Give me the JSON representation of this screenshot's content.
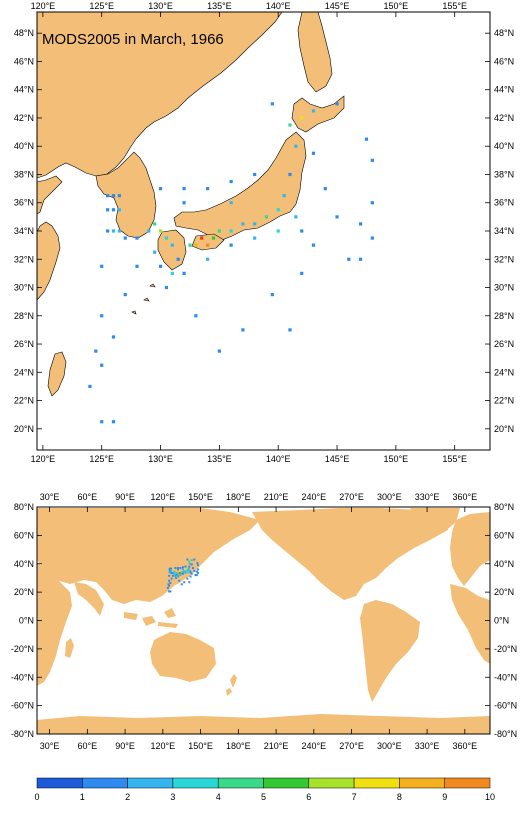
{
  "top_map": {
    "title": "MODS2005 in March, 1966",
    "lon_ticks": [
      "120°E",
      "125°E",
      "130°E",
      "135°E",
      "140°E",
      "145°E",
      "150°E",
      "155°E"
    ],
    "lat_ticks": [
      "20°N",
      "22°N",
      "24°N",
      "26°N",
      "28°N",
      "30°N",
      "32°N",
      "34°N",
      "36°N",
      "38°N",
      "40°N",
      "42°N",
      "44°N",
      "46°N",
      "48°N"
    ],
    "extent": {
      "lon": [
        119.5,
        158
      ],
      "lat": [
        18.5,
        49.5
      ]
    }
  },
  "bottom_map": {
    "lon_ticks": [
      "30°E",
      "60°E",
      "90°E",
      "120°E",
      "150°E",
      "180°E",
      "210°E",
      "240°E",
      "270°E",
      "300°E",
      "330°E",
      "360°E"
    ],
    "lat_ticks": [
      "80°N",
      "60°N",
      "40°N",
      "20°N",
      "0°N",
      "-20°N",
      "-40°N",
      "-60°N",
      "-80°N"
    ],
    "extent": {
      "lon": [
        20,
        380
      ],
      "lat": [
        -80,
        80
      ]
    }
  },
  "colorbar": {
    "labels": [
      "0",
      "1",
      "2",
      "3",
      "4",
      "5",
      "6",
      "7",
      "8",
      "9",
      "10"
    ],
    "colors": [
      "#1e5bd9",
      "#2f8af0",
      "#35b5f0",
      "#2ad7d7",
      "#39d98a",
      "#34c934",
      "#a6e22a",
      "#f0e010",
      "#f5b020",
      "#f08a20",
      "#e04010"
    ]
  },
  "colors": {
    "land": "#f3bf78",
    "ocean": "#ffffff",
    "coast": "#000000"
  },
  "chart_data": {
    "type": "heatmap",
    "title": "MODS2005 in March, 1966",
    "xlabel": "",
    "ylabel": "",
    "value_range": [
      0,
      10
    ],
    "observations": [
      {
        "lon": 125.5,
        "lat": 36.5,
        "v": 1
      },
      {
        "lon": 126.0,
        "lat": 36.5,
        "v": 1
      },
      {
        "lon": 126.5,
        "lat": 36.5,
        "v": 1
      },
      {
        "lon": 125.5,
        "lat": 35.5,
        "v": 1
      },
      {
        "lon": 126.0,
        "lat": 35.5,
        "v": 1
      },
      {
        "lon": 126.5,
        "lat": 35.5,
        "v": 2
      },
      {
        "lon": 125.5,
        "lat": 34.0,
        "v": 1
      },
      {
        "lon": 126.0,
        "lat": 34.0,
        "v": 2
      },
      {
        "lon": 126.5,
        "lat": 34.0,
        "v": 2
      },
      {
        "lon": 127.0,
        "lat": 33.5,
        "v": 1
      },
      {
        "lon": 128.0,
        "lat": 33.5,
        "v": 1
      },
      {
        "lon": 129.0,
        "lat": 34.0,
        "v": 2
      },
      {
        "lon": 129.5,
        "lat": 34.5,
        "v": 4
      },
      {
        "lon": 130.0,
        "lat": 34.0,
        "v": 6
      },
      {
        "lon": 130.5,
        "lat": 33.5,
        "v": 3
      },
      {
        "lon": 131.0,
        "lat": 33.0,
        "v": 2
      },
      {
        "lon": 131.5,
        "lat": 32.0,
        "v": 1
      },
      {
        "lon": 132.5,
        "lat": 33.0,
        "v": 4
      },
      {
        "lon": 133.0,
        "lat": 33.0,
        "v": 8
      },
      {
        "lon": 133.5,
        "lat": 33.5,
        "v": 10
      },
      {
        "lon": 134.0,
        "lat": 33.0,
        "v": 9
      },
      {
        "lon": 134.5,
        "lat": 33.5,
        "v": 5
      },
      {
        "lon": 135.0,
        "lat": 34.0,
        "v": 4
      },
      {
        "lon": 136.0,
        "lat": 34.0,
        "v": 3
      },
      {
        "lon": 137.0,
        "lat": 34.5,
        "v": 2
      },
      {
        "lon": 138.0,
        "lat": 34.5,
        "v": 2
      },
      {
        "lon": 139.0,
        "lat": 35.0,
        "v": 4
      },
      {
        "lon": 140.0,
        "lat": 35.5,
        "v": 3
      },
      {
        "lon": 140.5,
        "lat": 36.5,
        "v": 2
      },
      {
        "lon": 141.0,
        "lat": 38.0,
        "v": 1
      },
      {
        "lon": 141.5,
        "lat": 40.0,
        "v": 2
      },
      {
        "lon": 142.0,
        "lat": 42.0,
        "v": 7
      },
      {
        "lon": 141.0,
        "lat": 41.5,
        "v": 4
      },
      {
        "lon": 139.5,
        "lat": 43.0,
        "v": 1
      },
      {
        "lon": 143.0,
        "lat": 42.5,
        "v": 2
      },
      {
        "lon": 145.0,
        "lat": 43.0,
        "v": 1
      },
      {
        "lon": 130.0,
        "lat": 37.0,
        "v": 1
      },
      {
        "lon": 132.0,
        "lat": 37.0,
        "v": 1
      },
      {
        "lon": 134.0,
        "lat": 37.0,
        "v": 1
      },
      {
        "lon": 136.0,
        "lat": 37.5,
        "v": 1
      },
      {
        "lon": 138.0,
        "lat": 38.0,
        "v": 1
      },
      {
        "lon": 136.0,
        "lat": 36.0,
        "v": 2
      },
      {
        "lon": 132.0,
        "lat": 36.0,
        "v": 1
      },
      {
        "lon": 128.0,
        "lat": 31.5,
        "v": 1
      },
      {
        "lon": 130.0,
        "lat": 31.5,
        "v": 1
      },
      {
        "lon": 132.0,
        "lat": 31.0,
        "v": 1
      },
      {
        "lon": 134.0,
        "lat": 32.0,
        "v": 2
      },
      {
        "lon": 136.0,
        "lat": 33.0,
        "v": 1
      },
      {
        "lon": 138.0,
        "lat": 33.5,
        "v": 2
      },
      {
        "lon": 140.0,
        "lat": 34.0,
        "v": 3
      },
      {
        "lon": 141.5,
        "lat": 35.0,
        "v": 2
      },
      {
        "lon": 142.0,
        "lat": 34.0,
        "v": 1
      },
      {
        "lon": 125.0,
        "lat": 31.5,
        "v": 1
      },
      {
        "lon": 125.0,
        "lat": 28.0,
        "v": 1
      },
      {
        "lon": 127.0,
        "lat": 29.5,
        "v": 1
      },
      {
        "lon": 126.0,
        "lat": 26.5,
        "v": 1
      },
      {
        "lon": 124.5,
        "lat": 25.5,
        "v": 1
      },
      {
        "lon": 124.0,
        "lat": 23.0,
        "v": 1
      },
      {
        "lon": 125.0,
        "lat": 24.5,
        "v": 1
      },
      {
        "lon": 125.0,
        "lat": 20.5,
        "v": 1
      },
      {
        "lon": 126.0,
        "lat": 20.5,
        "v": 1
      },
      {
        "lon": 133.0,
        "lat": 28.0,
        "v": 1
      },
      {
        "lon": 137.0,
        "lat": 27.0,
        "v": 1
      },
      {
        "lon": 135.0,
        "lat": 25.5,
        "v": 1
      },
      {
        "lon": 144.0,
        "lat": 37.0,
        "v": 1
      },
      {
        "lon": 145.0,
        "lat": 35.0,
        "v": 1
      },
      {
        "lon": 147.0,
        "lat": 34.5,
        "v": 1
      },
      {
        "lon": 146.0,
        "lat": 32.0,
        "v": 1
      },
      {
        "lon": 147.0,
        "lat": 32.0,
        "v": 1
      },
      {
        "lon": 148.0,
        "lat": 33.5,
        "v": 1
      },
      {
        "lon": 148.0,
        "lat": 36.0,
        "v": 1
      },
      {
        "lon": 148.0,
        "lat": 39.0,
        "v": 1
      },
      {
        "lon": 147.5,
        "lat": 40.5,
        "v": 1
      },
      {
        "lon": 143.0,
        "lat": 39.5,
        "v": 1
      },
      {
        "lon": 143.0,
        "lat": 33.0,
        "v": 1
      },
      {
        "lon": 142.0,
        "lat": 31.0,
        "v": 1
      },
      {
        "lon": 139.5,
        "lat": 29.5,
        "v": 1
      },
      {
        "lon": 141.0,
        "lat": 27.0,
        "v": 1
      },
      {
        "lon": 130.5,
        "lat": 30.0,
        "v": 1
      },
      {
        "lon": 131.0,
        "lat": 31.0,
        "v": 3
      },
      {
        "lon": 129.5,
        "lat": 32.5,
        "v": 2
      }
    ]
  }
}
